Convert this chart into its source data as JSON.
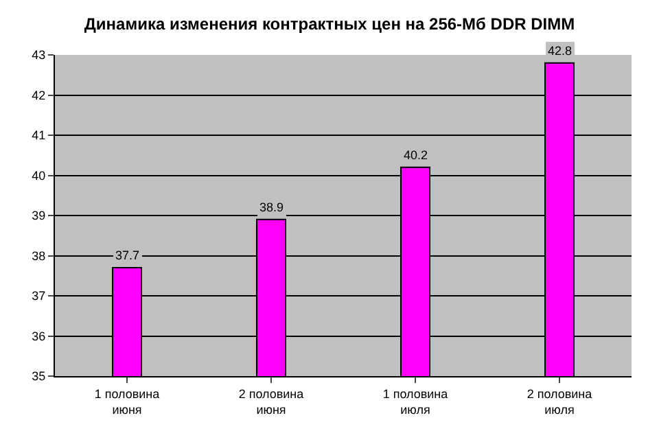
{
  "chart_data": {
    "type": "bar",
    "title": "Динамика изменения контрактных цен на 256-Мб DDR DIMM",
    "categories": [
      "1 половина\nиюня",
      "2 половина\nиюня",
      "1 половина\nиюля",
      "2 половина\nиюля"
    ],
    "values": [
      37.7,
      38.9,
      40.2,
      42.8
    ],
    "color": "#ff00ff",
    "ylim": [
      35,
      43
    ],
    "yticks": [
      35,
      36,
      37,
      38,
      39,
      40,
      41,
      42,
      43
    ],
    "grid": "y",
    "data_labels": true
  }
}
